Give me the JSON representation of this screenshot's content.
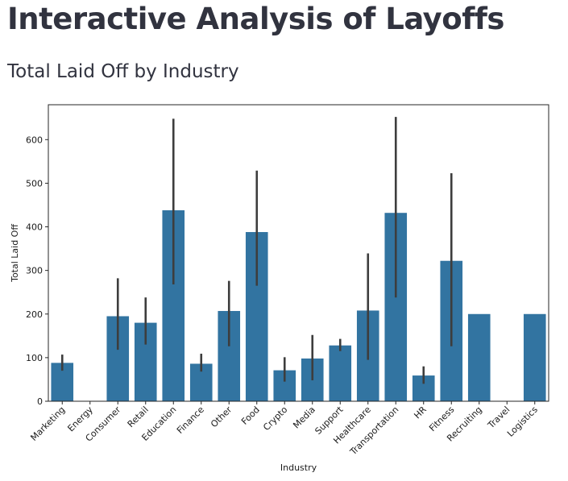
{
  "page": {
    "title": "Interactive Analysis of Layoffs",
    "section_title": "Total Laid Off by Industry"
  },
  "colors": {
    "bar": "#3274a1",
    "error_bar": "#3d3d3d",
    "axis": "#262626",
    "text": "#31333f"
  },
  "chart_data": {
    "type": "bar",
    "categories": [
      "Marketing",
      "Energy",
      "Consumer",
      "Retail",
      "Education",
      "Finance",
      "Other",
      "Food",
      "Crypto",
      "Media",
      "Support",
      "Healthcare",
      "Transportation",
      "HR",
      "Fitness",
      "Recruiting",
      "Travel",
      "Logistics"
    ],
    "values": [
      88,
      0,
      195,
      180,
      438,
      86,
      207,
      388,
      71,
      98,
      128,
      208,
      432,
      59,
      322,
      200,
      0,
      200
    ],
    "error_low": [
      70,
      null,
      118,
      130,
      268,
      68,
      126,
      265,
      45,
      48,
      115,
      95,
      238,
      40,
      126,
      null,
      null,
      null
    ],
    "error_high": [
      107,
      null,
      282,
      238,
      648,
      109,
      276,
      529,
      101,
      152,
      143,
      339,
      652,
      80,
      523,
      null,
      null,
      null
    ],
    "title": "",
    "xlabel": "Industry",
    "ylabel": "Total Laid Off",
    "ylim": [
      0,
      680
    ],
    "yticks": [
      0,
      100,
      200,
      300,
      400,
      500,
      600
    ],
    "grid": false
  }
}
